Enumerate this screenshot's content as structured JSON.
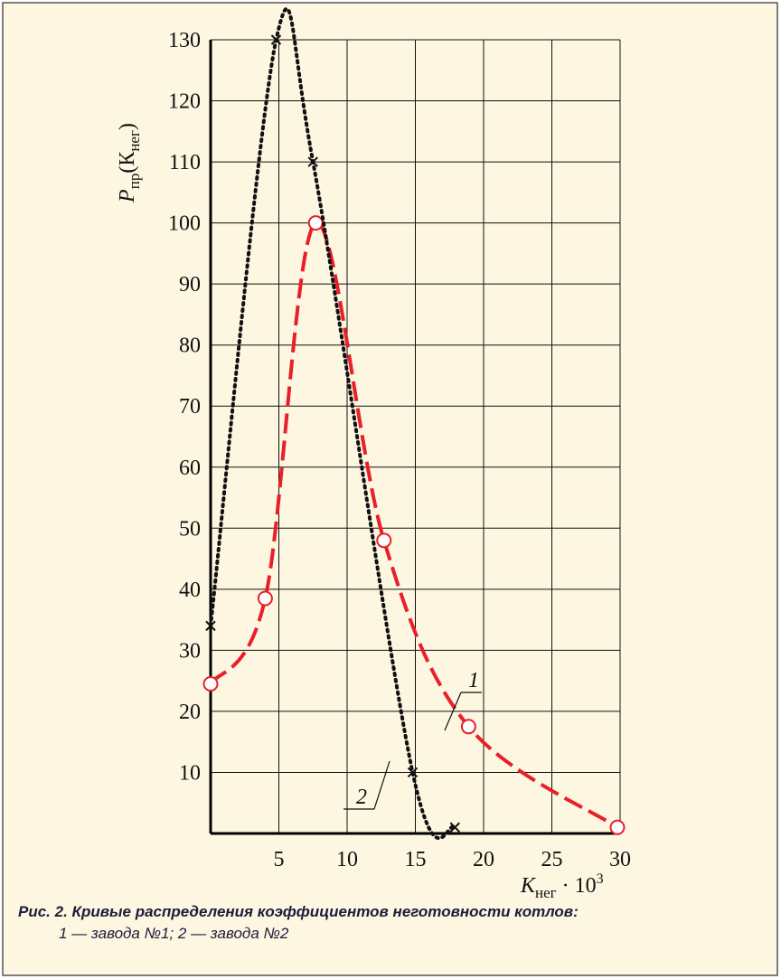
{
  "chart_data": {
    "type": "line",
    "y_label": [
      "P",
      "пр",
      "(К",
      "нег",
      ")"
    ],
    "x_label": [
      "K",
      "нег",
      " · 10",
      "3"
    ],
    "caption": [
      "Рис. 2.  Кривые распределения коэффициентов неготовности котлов:",
      "1 — завода №1; 2 — завода №2"
    ],
    "series": [
      {
        "name": "1",
        "color": "#e8202a",
        "x": [
          0,
          4,
          7.7,
          12.7,
          18.9,
          29.8
        ],
        "values": [
          24.5,
          38.5,
          100,
          48,
          17.5,
          1
        ]
      },
      {
        "name": "2",
        "color": "#111111",
        "x": [
          0,
          4.8,
          7.5,
          14.8,
          17.9
        ],
        "values": [
          34,
          130,
          110,
          10,
          1
        ]
      }
    ],
    "xlim": [
      0,
      30
    ],
    "xticks": [
      5,
      10,
      15,
      20,
      25,
      30
    ],
    "ylim": [
      0,
      130
    ],
    "yticks": [
      10,
      20,
      30,
      40,
      50,
      60,
      70,
      80,
      90,
      100,
      110,
      120,
      130
    ],
    "grid": true
  }
}
